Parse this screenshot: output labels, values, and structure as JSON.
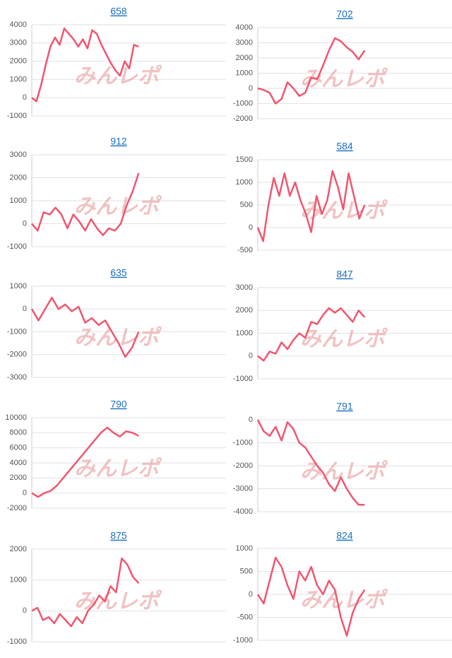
{
  "watermark": "みんレポ",
  "chart_data": [
    {
      "type": "line",
      "title": "658",
      "ylim": [
        -1000,
        4000
      ],
      "yticks": [
        -1000,
        0,
        1000,
        2000,
        3000,
        4000
      ],
      "grid": true,
      "color": "#f0566f",
      "values": [
        0,
        -200,
        700,
        1800,
        2800,
        3300,
        2900,
        3800,
        3500,
        3200,
        2800,
        3200,
        2700,
        3700,
        3500,
        2900,
        2400,
        1900,
        1500,
        1200,
        2000,
        1600,
        2900,
        2800
      ]
    },
    {
      "type": "line",
      "title": "702",
      "ylim": [
        -2000,
        4000
      ],
      "yticks": [
        -2000,
        -1000,
        0,
        1000,
        2000,
        3000,
        4000
      ],
      "grid": true,
      "color": "#f0566f",
      "values": [
        0,
        -100,
        -300,
        -1000,
        -700,
        400,
        0,
        -500,
        -300,
        700,
        600,
        1500,
        2500,
        3300,
        3100,
        2700,
        2400,
        1900,
        2500
      ]
    },
    {
      "type": "line",
      "title": "912",
      "ylim": [
        -1000,
        3000
      ],
      "yticks": [
        -1000,
        0,
        1000,
        2000,
        3000
      ],
      "grid": true,
      "color": "#f0566f",
      "values": [
        0,
        -300,
        500,
        400,
        700,
        400,
        -200,
        400,
        100,
        -300,
        200,
        -200,
        -500,
        -200,
        -300,
        0,
        800,
        1400,
        2200
      ]
    },
    {
      "type": "line",
      "title": "584",
      "ylim": [
        -500,
        1500
      ],
      "yticks": [
        -500,
        0,
        500,
        1000,
        1500
      ],
      "grid": true,
      "color": "#f0566f",
      "values": [
        0,
        -300,
        500,
        1100,
        700,
        1200,
        700,
        1000,
        600,
        300,
        -100,
        700,
        300,
        600,
        1250,
        900,
        400,
        1200,
        700,
        200,
        500
      ]
    },
    {
      "type": "line",
      "title": "635",
      "ylim": [
        -3000,
        1000
      ],
      "yticks": [
        -3000,
        -2000,
        -1000,
        0,
        1000
      ],
      "grid": true,
      "color": "#f0566f",
      "values": [
        0,
        -500,
        0,
        500,
        0,
        200,
        -100,
        100,
        -600,
        -400,
        -700,
        -500,
        -1000,
        -1500,
        -2100,
        -1700,
        -1000
      ]
    },
    {
      "type": "line",
      "title": "847",
      "ylim": [
        -1000,
        3000
      ],
      "yticks": [
        -1000,
        0,
        1000,
        2000,
        3000
      ],
      "grid": true,
      "color": "#f0566f",
      "values": [
        0,
        -200,
        200,
        100,
        600,
        300,
        700,
        1000,
        800,
        1500,
        1400,
        1800,
        2100,
        1900,
        2100,
        1800,
        1500,
        2000,
        1700
      ]
    },
    {
      "type": "line",
      "title": "790",
      "ylim": [
        -2000,
        10000
      ],
      "yticks": [
        -2000,
        0,
        2000,
        4000,
        6000,
        8000,
        10000
      ],
      "grid": true,
      "color": "#f0566f",
      "values": [
        0,
        -500,
        0,
        300,
        1000,
        2000,
        3000,
        4000,
        5000,
        6000,
        7000,
        8000,
        8700,
        8000,
        7500,
        8200,
        8000,
        7600
      ]
    },
    {
      "type": "line",
      "title": "791",
      "ylim": [
        -4000,
        0
      ],
      "yticks": [
        -4000,
        -3000,
        -2000,
        -1000,
        0
      ],
      "grid": true,
      "color": "#f0566f",
      "values": [
        0,
        -500,
        -700,
        -300,
        -900,
        -100,
        -400,
        -1000,
        -1200,
        -1600,
        -2000,
        -2300,
        -2800,
        -3100,
        -2500,
        -3000,
        -3400,
        -3700,
        -3700
      ]
    },
    {
      "type": "line",
      "title": "875",
      "ylim": [
        -1000,
        2000
      ],
      "yticks": [
        -1000,
        0,
        1000,
        2000
      ],
      "grid": true,
      "color": "#f0566f",
      "values": [
        0,
        100,
        -300,
        -200,
        -400,
        -100,
        -300,
        -500,
        -200,
        -400,
        0,
        200,
        500,
        300,
        800,
        600,
        1700,
        1500,
        1100,
        900
      ]
    },
    {
      "type": "line",
      "title": "824",
      "ylim": [
        -1000,
        1000
      ],
      "yticks": [
        -1000,
        -500,
        0,
        500,
        1000
      ],
      "grid": true,
      "color": "#f0566f",
      "values": [
        0,
        -200,
        300,
        800,
        600,
        200,
        -100,
        500,
        300,
        600,
        200,
        0,
        300,
        100,
        -500,
        -900,
        -400,
        -100,
        100
      ]
    }
  ]
}
